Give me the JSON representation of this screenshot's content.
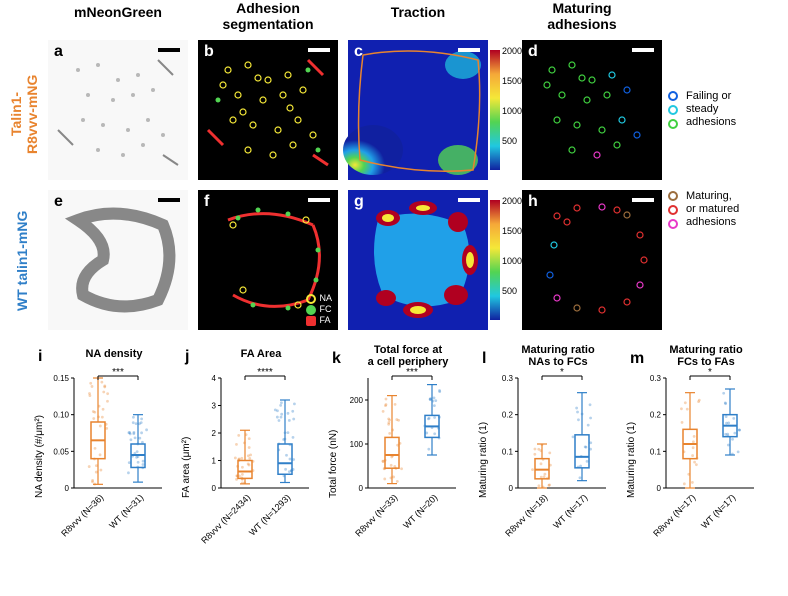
{
  "headers": {
    "col1": "mNeonGreen",
    "col2": "Adhesion\nsegmentation",
    "col3": "Traction",
    "col4": "Maturing\nadhesions"
  },
  "rowLabels": {
    "top": {
      "text": "Talin1-\nR8vvv-mNG",
      "color": "#e8842f"
    },
    "bottom": {
      "text": "WT talin1-mNG",
      "color": "#2f7fc8"
    }
  },
  "panels": {
    "a": {
      "letter": "a",
      "letterColor": "#000"
    },
    "b": {
      "letter": "b",
      "letterColor": "#fff"
    },
    "c": {
      "letter": "c",
      "letterColor": "#fff"
    },
    "d": {
      "letter": "d",
      "letterColor": "#fff"
    },
    "e": {
      "letter": "e",
      "letterColor": "#000"
    },
    "f": {
      "letter": "f",
      "letterColor": "#fff"
    },
    "g": {
      "letter": "g",
      "letterColor": "#fff"
    },
    "h": {
      "letter": "h",
      "letterColor": "#fff"
    }
  },
  "segLegend": {
    "na": {
      "label": "NA",
      "color": "#f5e838"
    },
    "fc": {
      "label": "FC",
      "color": "#52d452"
    },
    "fa": {
      "label": "FA",
      "color": "#ef3030"
    }
  },
  "adhLegend": {
    "line1": "Failing or",
    "line2": "steady",
    "line3": "adhesions",
    "line4": "Maturing,",
    "line5": "or matured",
    "line6": "adhesions",
    "colors": {
      "blue": "#1060e0",
      "cyan": "#20c8e0",
      "green": "#40d040",
      "brown": "#9c6d3d",
      "red": "#e03030",
      "magenta": "#e838c8"
    }
  },
  "traction": {
    "min": 0,
    "max": 2000,
    "ticks": [
      500,
      1000,
      1500,
      2000
    ]
  },
  "charts": {
    "colors": {
      "r8": "#e8842f",
      "wt": "#2f7fc8",
      "axis": "#000000"
    },
    "i": {
      "letter": "i",
      "title": "NA density",
      "ylabel": "NA density (#/μm²)",
      "ymin": 0,
      "ymax": 0.15,
      "ytick": 0.05,
      "sig": "***",
      "r8": {
        "q1": 0.04,
        "med": 0.065,
        "q3": 0.09,
        "whLo": 0.005,
        "whHi": 0.15,
        "n": 36,
        "cat": "R8vvv (N=36)"
      },
      "wt": {
        "q1": 0.028,
        "med": 0.045,
        "q3": 0.06,
        "whLo": 0.008,
        "whHi": 0.1,
        "n": 31,
        "cat": "WT (N=31)"
      }
    },
    "j": {
      "letter": "j",
      "title": "FA Area",
      "ylabel": "FA area (μm²)",
      "ymin": 0,
      "ymax": 4,
      "ytick": 1,
      "sig": "****",
      "r8": {
        "q1": 0.35,
        "med": 0.6,
        "q3": 1.0,
        "whLo": 0.15,
        "whHi": 2.1,
        "n": 2434,
        "cat": "R8vvv (N=2434)"
      },
      "wt": {
        "q1": 0.5,
        "med": 0.9,
        "q3": 1.6,
        "whLo": 0.2,
        "whHi": 3.2,
        "n": 1293,
        "cat": "WT (N=1293)"
      }
    },
    "k": {
      "letter": "k",
      "title": "Total force at\na cell periphery",
      "ylabel": "Total force (nN)",
      "ymin": 0,
      "ymax": 250,
      "ytick": 100,
      "sig": "***",
      "r8": {
        "q1": 45,
        "med": 75,
        "q3": 115,
        "whLo": 10,
        "whHi": 210,
        "n": 33,
        "cat": "R8vvv (N=33)"
      },
      "wt": {
        "q1": 115,
        "med": 140,
        "q3": 165,
        "whLo": 75,
        "whHi": 235,
        "n": 20,
        "cat": "WT (N=20)"
      }
    },
    "l": {
      "letter": "l",
      "title": "Maturing ratio\nNAs to FCs",
      "ylabel": "Maturing ratio (1)",
      "ymin": 0,
      "ymax": 0.3,
      "ytick": 0.1,
      "sig": "*",
      "r8": {
        "q1": 0.025,
        "med": 0.05,
        "q3": 0.08,
        "whLo": 0.0,
        "whHi": 0.12,
        "n": 18,
        "cat": "R8vvv (N=18)"
      },
      "wt": {
        "q1": 0.055,
        "med": 0.085,
        "q3": 0.145,
        "whLo": 0.02,
        "whHi": 0.26,
        "n": 17,
        "cat": "WT (N=17)"
      }
    },
    "m": {
      "letter": "m",
      "title": "Maturing ratio\nFCs to FAs",
      "ylabel": "Maturing ratio (1)",
      "ymin": 0,
      "ymax": 0.3,
      "ytick": 0.1,
      "sig": "*",
      "r8": {
        "q1": 0.08,
        "med": 0.12,
        "q3": 0.16,
        "whLo": 0.0,
        "whHi": 0.26,
        "n": 17,
        "cat": "R8vvv (N=17)"
      },
      "wt": {
        "q1": 0.14,
        "med": 0.17,
        "q3": 0.2,
        "whLo": 0.09,
        "whHi": 0.27,
        "n": 17,
        "cat": "WT (N=17)"
      }
    }
  },
  "layout": {
    "imgTop1": 40,
    "imgTop2": 190,
    "imgLeft": [
      48,
      198,
      348,
      512
    ],
    "imgW": 140,
    "imgH": 140,
    "chartTop": 360,
    "chartH": 200,
    "chartW": 132,
    "chartLeft": [
      38,
      185,
      332,
      482,
      630
    ]
  }
}
